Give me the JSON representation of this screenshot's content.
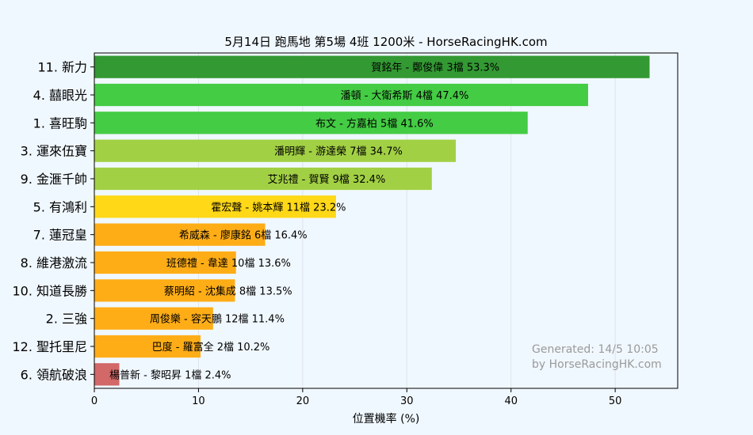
{
  "chart_data": {
    "type": "bar",
    "orientation": "horizontal",
    "title": "5月14日  跑馬地  第5場  4班  1200米 - HorseRacingHK.com",
    "xlabel": "位置機率 (%)",
    "ylabel": "",
    "xlim": [
      0,
      56
    ],
    "xticks": [
      0,
      10,
      20,
      30,
      40,
      50
    ],
    "grid": "vertical",
    "categories": [
      "11. 新力",
      "4. 囍眼光",
      "1. 喜旺駒",
      "3. 運來伍寶",
      "9. 金滙千帥",
      "5. 有鴻利",
      "7. 蓮冠皇",
      "8. 維港激流",
      "10. 知道長勝",
      "2. 三強",
      "12. 聖托里尼",
      "6. 領航破浪"
    ],
    "values": [
      53.3,
      47.4,
      41.6,
      34.7,
      32.4,
      23.2,
      16.4,
      13.6,
      13.5,
      11.4,
      10.2,
      2.4
    ],
    "bar_labels": [
      "賀銘年 - 鄭俊偉 3檔  53.3%",
      "潘頓 - 大衛希斯 4檔  47.4%",
      "布文 - 方嘉柏 5檔  41.6%",
      "潘明輝 - 游達榮 7檔  34.7%",
      "艾兆禮 - 賀賢 9檔  32.4%",
      "霍宏聲 - 姚本輝 11檔  23.2%",
      "希威森 - 廖康銘 6檔  16.4%",
      "班德禮 - 韋達 10檔  13.6%",
      "蔡明紹 - 沈集成 8檔  13.5%",
      "周俊樂 - 容天鵬 12檔  11.4%",
      "巴度 - 羅富全 2檔  10.2%",
      "楊普新 - 黎昭昇 1檔  2.4%"
    ],
    "colors": [
      "#339933",
      "#44cc44",
      "#44cc44",
      "#a2d044",
      "#a2d044",
      "#ffd817",
      "#ffad17",
      "#ffad17",
      "#ffad17",
      "#ffad17",
      "#ffad17",
      "#d26868"
    ],
    "watermark": [
      "Generated: 14/5 10:05",
      "by HorseRacingHK.com"
    ]
  }
}
